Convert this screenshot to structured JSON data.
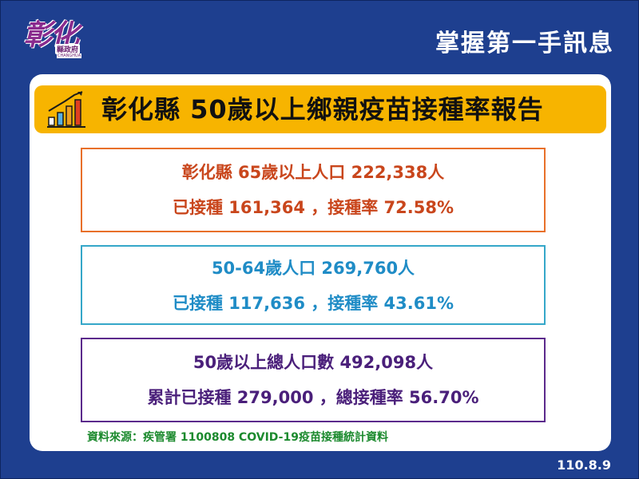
{
  "logo": {
    "text": "彰化",
    "subtitle": "縣政府",
    "tiny": "CHANGHUA"
  },
  "header": {
    "title": "掌握第一手訊息"
  },
  "report": {
    "title": "彰化縣 50歲以上鄉親疫苗接種率報告"
  },
  "boxes": [
    {
      "line1": "彰化縣 65歲以上人口 222,338人",
      "line2": "已接種 161,364 ，接種率 72.58%"
    },
    {
      "line1": "50-64歲人口 269,760人",
      "line2": "已接種 117,636 ，接種率 43.61%"
    },
    {
      "line1": "50歲以上總人口數 492,098人",
      "line2": "累計已接種 279,000 ，總接種率 56.70%"
    }
  ],
  "source": "資料來源：疾管署 1100808 COVID-19疫苗接種統計資料",
  "date": "110.8.9",
  "colors": {
    "background": "#1e3f8f",
    "banner": "#f7b400",
    "box1": "#e8702a",
    "box2": "#35a7c9",
    "box3": "#5b2a8c",
    "source": "#1c8a2e"
  },
  "icons": {
    "title": "bar-chart-trend-icon"
  }
}
